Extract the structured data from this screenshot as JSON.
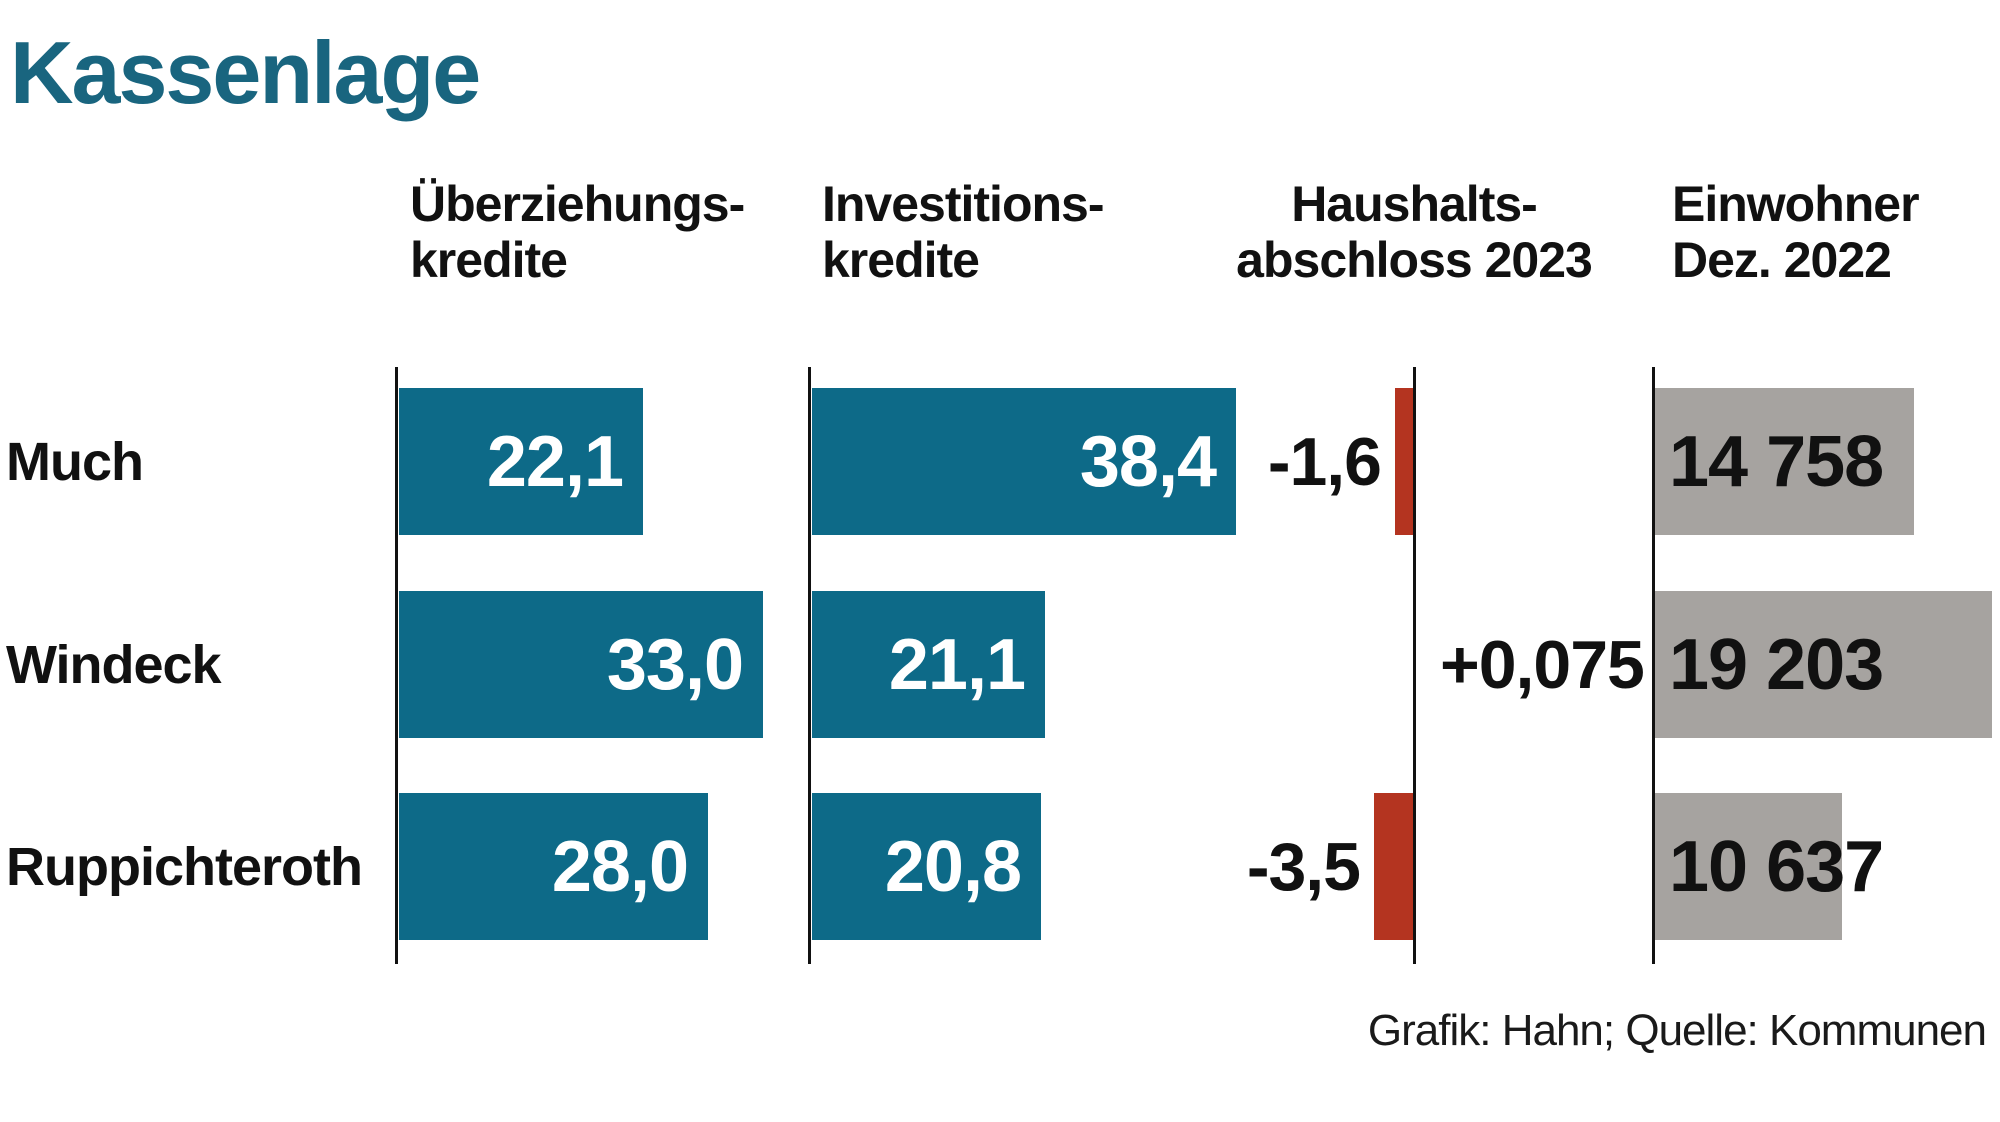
{
  "title": "Kassenlage",
  "footer": "Grafik: Hahn; Quelle: Kommunen",
  "colors": {
    "title": "#19657f",
    "teal": "#0d6a88",
    "red": "#b43420",
    "gray": "#a6a3a0",
    "axis": "#111111"
  },
  "headers": [
    {
      "line1": "Überziehungs-",
      "line2": "kredite"
    },
    {
      "line1": "Investitions-",
      "line2": "kredite"
    },
    {
      "line1": "Haushalts-",
      "line2": "abschloss 2023"
    },
    {
      "line1": "Einwohner",
      "line2": "Dez. 2022"
    }
  ],
  "chart_data": {
    "type": "bar",
    "orientation": "horizontal",
    "title": "Kassenlage",
    "categories": [
      "Much",
      "Windeck",
      "Ruppichteroth"
    ],
    "series": [
      {
        "name": "Überziehungskredite",
        "values": [
          22.1,
          33.0,
          28.0
        ],
        "labels": [
          "22,1",
          "33,0",
          "28,0"
        ],
        "color": "#0d6a88"
      },
      {
        "name": "Investitionskredite",
        "values": [
          38.4,
          21.1,
          20.8
        ],
        "labels": [
          "38,4",
          "21,1",
          "20,8"
        ],
        "color": "#0d6a88"
      },
      {
        "name": "Haushaltsabschloss 2023",
        "values": [
          -1.6,
          0.075,
          -3.5
        ],
        "labels": [
          "-1,6",
          "+0,075",
          "-3,5"
        ],
        "color": "#b43420"
      },
      {
        "name": "Einwohner Dez. 2022",
        "values": [
          14758,
          19203,
          10637
        ],
        "labels": [
          "14 758",
          "19 203",
          "10 637"
        ],
        "color": "#a6a3a0"
      }
    ],
    "legend_position": "none",
    "grid": false,
    "source_note": "Grafik: Hahn; Quelle: Kommunen"
  }
}
